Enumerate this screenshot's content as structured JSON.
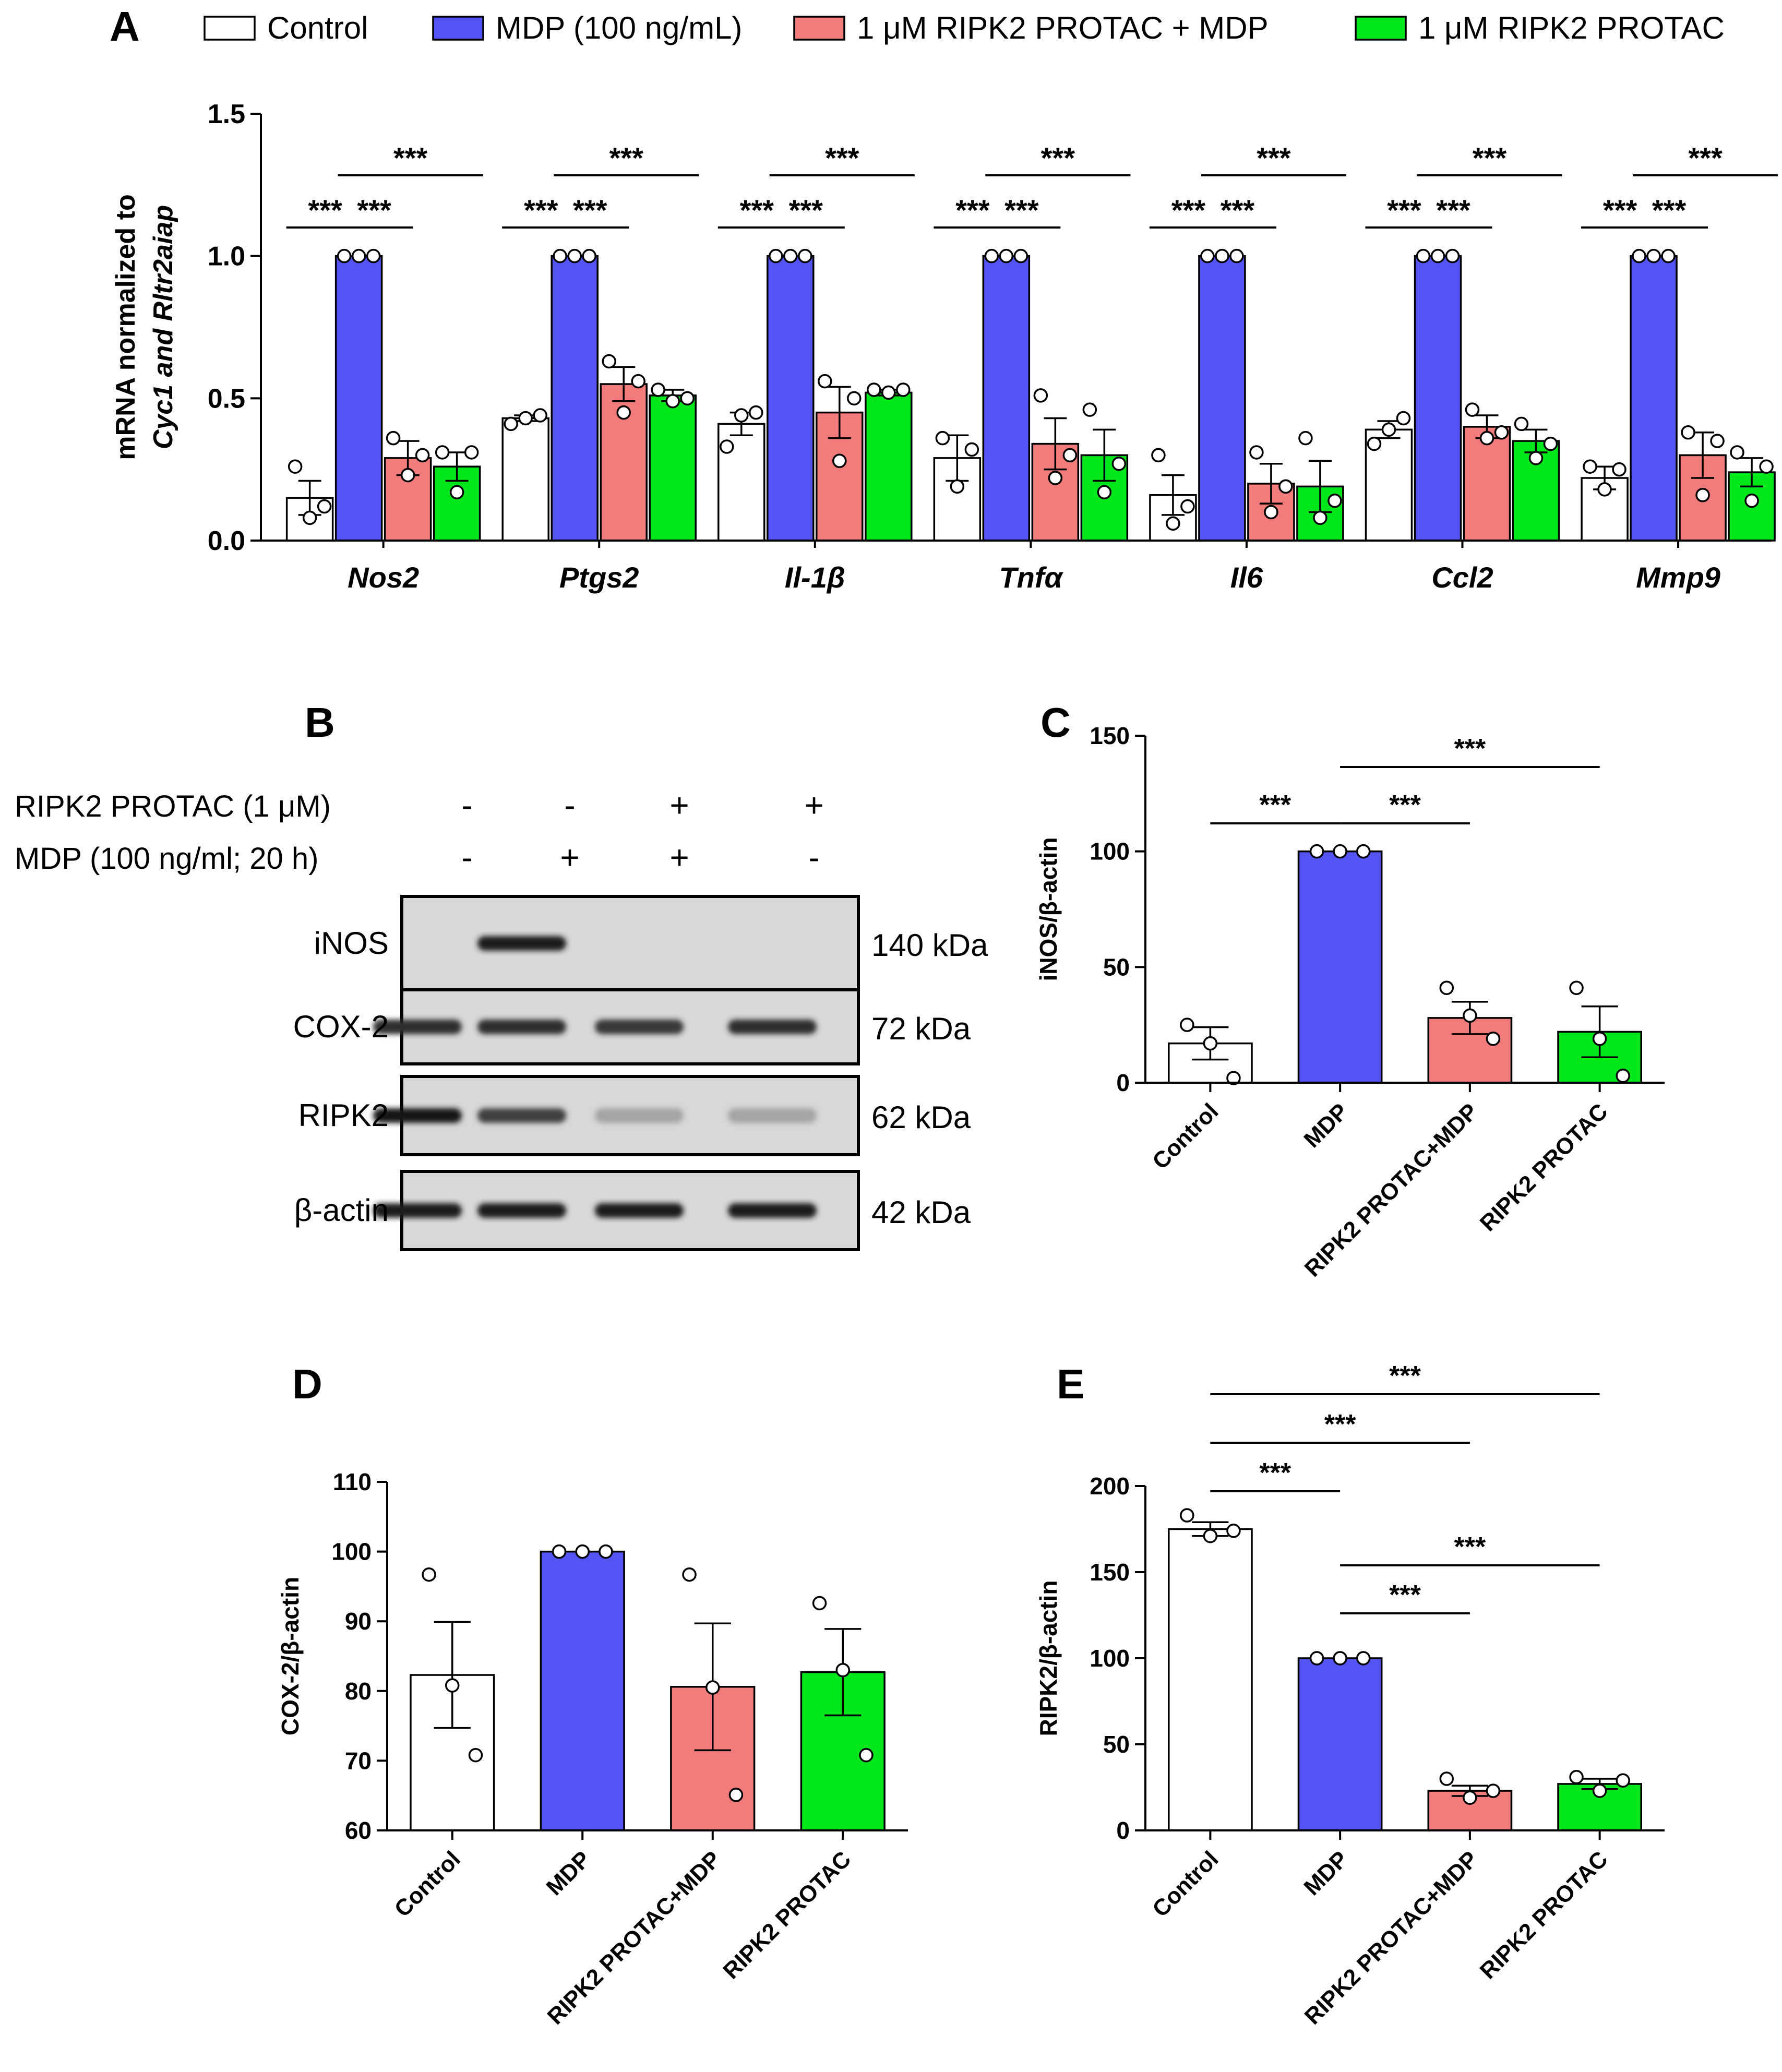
{
  "figure": {
    "colors": {
      "control": "#ffffff",
      "mdp": "#5454F5",
      "combo": "#F27C7C",
      "protac": "#00E81C"
    },
    "panels": {
      "A": {
        "letter": "A"
      },
      "B": {
        "letter": "B",
        "conditions": [
          {
            "label": "RIPK2 PROTAC (1 μM)",
            "lanes": [
              "-",
              "-",
              "+",
              "+"
            ]
          },
          {
            "label": "MDP (100 ng/ml; 20 h)",
            "lanes": [
              "-",
              "+",
              "+",
              "-"
            ]
          }
        ],
        "blots": [
          {
            "protein": "iNOS",
            "size": "140 kDa",
            "intensity": [
              0.0,
              0.95,
              0.0,
              0.0
            ]
          },
          {
            "protein": "COX-2",
            "size": "72 kDa",
            "intensity": [
              0.85,
              0.85,
              0.8,
              0.85
            ]
          },
          {
            "protein": "RIPK2",
            "size": "62 kDa",
            "intensity": [
              1.0,
              0.75,
              0.2,
              0.2
            ]
          },
          {
            "protein": "β-actin",
            "size": "42 kDa",
            "intensity": [
              0.95,
              0.95,
              0.95,
              0.95
            ]
          }
        ]
      },
      "C": {
        "letter": "C"
      },
      "D": {
        "letter": "D"
      },
      "E": {
        "letter": "E"
      }
    }
  },
  "chart_data": [
    {
      "panel": "A",
      "type": "bar",
      "ylabel": [
        "mRNA normalized to",
        "Cyc1 and Rltr2aiap"
      ],
      "ylim": [
        0,
        1.5
      ],
      "yticks": [
        "0.0",
        "0.5",
        "1.0",
        "1.5"
      ],
      "legend": [
        "Control",
        "MDP (100 ng/mL)",
        "1 μM RIPK2 PROTAC + MDP",
        "1 μM RIPK2 PROTAC"
      ],
      "categories": [
        "Nos2",
        "Ptgs2",
        "Il-1β",
        "Tnfα",
        "Il6",
        "Ccl2",
        "Mmp9"
      ],
      "series": [
        {
          "name": "Control",
          "values": [
            0.15,
            0.43,
            0.41,
            0.29,
            0.16,
            0.39,
            0.22
          ],
          "errors": [
            0.06,
            0.01,
            0.04,
            0.08,
            0.07,
            0.03,
            0.04
          ],
          "points": [
            [
              0.26,
              0.08,
              0.12
            ],
            [
              0.41,
              0.43,
              0.44
            ],
            [
              0.33,
              0.44,
              0.45
            ],
            [
              0.36,
              0.19,
              0.32
            ],
            [
              0.3,
              0.06,
              0.12
            ],
            [
              0.34,
              0.39,
              0.43
            ],
            [
              0.26,
              0.18,
              0.25
            ]
          ]
        },
        {
          "name": "MDP (100 ng/mL)",
          "values": [
            1.0,
            1.0,
            1.0,
            1.0,
            1.0,
            1.0,
            1.0
          ],
          "errors": [
            0,
            0,
            0,
            0,
            0,
            0,
            0
          ],
          "points": [
            [
              1,
              1,
              1
            ],
            [
              1,
              1,
              1
            ],
            [
              1,
              1,
              1
            ],
            [
              1,
              1,
              1
            ],
            [
              1,
              1,
              1
            ],
            [
              1,
              1,
              1
            ],
            [
              1,
              1,
              1
            ]
          ]
        },
        {
          "name": "1 μM RIPK2 PROTAC + MDP",
          "values": [
            0.29,
            0.55,
            0.45,
            0.34,
            0.2,
            0.4,
            0.3
          ],
          "errors": [
            0.06,
            0.06,
            0.09,
            0.09,
            0.07,
            0.04,
            0.08
          ],
          "points": [
            [
              0.36,
              0.23,
              0.3
            ],
            [
              0.63,
              0.45,
              0.56
            ],
            [
              0.56,
              0.28,
              0.5
            ],
            [
              0.51,
              0.22,
              0.3
            ],
            [
              0.31,
              0.1,
              0.19
            ],
            [
              0.46,
              0.36,
              0.38
            ],
            [
              0.38,
              0.16,
              0.35
            ]
          ]
        },
        {
          "name": "1 μM RIPK2 PROTAC",
          "values": [
            0.26,
            0.51,
            0.52,
            0.3,
            0.19,
            0.35,
            0.24
          ],
          "errors": [
            0.05,
            0.02,
            0.01,
            0.09,
            0.09,
            0.04,
            0.05
          ],
          "points": [
            [
              0.31,
              0.17,
              0.31
            ],
            [
              0.53,
              0.49,
              0.5
            ],
            [
              0.53,
              0.52,
              0.53
            ],
            [
              0.46,
              0.17,
              0.27
            ],
            [
              0.36,
              0.08,
              0.14
            ],
            [
              0.41,
              0.29,
              0.34
            ],
            [
              0.31,
              0.14,
              0.26
            ]
          ]
        }
      ],
      "significance": [
        {
          "from": "Control",
          "to": "MDP (100 ng/mL)",
          "label": "***"
        },
        {
          "from": "MDP (100 ng/mL)",
          "to": "1 μM RIPK2 PROTAC + MDP",
          "label": "***"
        },
        {
          "from": "MDP (100 ng/mL)",
          "to": "1 μM RIPK2 PROTAC",
          "label": "***"
        }
      ]
    },
    {
      "panel": "C",
      "type": "bar",
      "ylabel": "iNOS/β-actin",
      "ylim": [
        0,
        150
      ],
      "yticks": [
        "0",
        "50",
        "100",
        "150"
      ],
      "categories": [
        "Control",
        "MDP",
        "RIPK2 PROTAC+MDP",
        "RIPK2 PROTAC"
      ],
      "values": [
        17,
        100,
        28,
        22
      ],
      "errors": [
        7,
        0,
        7,
        11
      ],
      "points": [
        [
          25,
          17,
          2
        ],
        [
          100,
          100,
          100
        ],
        [
          41,
          29,
          19
        ],
        [
          41,
          19,
          3
        ]
      ],
      "significance": [
        {
          "from": 0,
          "to": 1,
          "label": "***",
          "level": 1
        },
        {
          "from": 1,
          "to": 2,
          "label": "***",
          "level": 1
        },
        {
          "from": 1,
          "to": 3,
          "label": "***",
          "level": 2
        }
      ]
    },
    {
      "panel": "D",
      "type": "bar",
      "ylabel": "COX-2/β-actin",
      "ylim": [
        60,
        110
      ],
      "yticks": [
        "60",
        "70",
        "80",
        "90",
        "100",
        "110"
      ],
      "categories": [
        "Control",
        "MDP",
        "RIPK2 PROTAC+MDP",
        "RIPK2 PROTAC"
      ],
      "values": [
        82.3,
        100,
        80.6,
        82.7
      ],
      "errors": [
        7.6,
        0,
        9.1,
        6.2
      ],
      "points": [
        [
          96.7,
          80.8,
          70.8
        ],
        [
          100,
          100,
          100
        ],
        [
          96.7,
          80.5,
          65.1
        ],
        [
          92.6,
          83.0,
          70.8
        ]
      ],
      "significance": []
    },
    {
      "panel": "E",
      "type": "bar",
      "ylabel": "RIPK2/β-actin",
      "ylim": [
        0,
        200
      ],
      "yticks": [
        "0",
        "50",
        "100",
        "150",
        "200"
      ],
      "categories": [
        "Control",
        "MDP",
        "RIPK2 PROTAC+MDP",
        "RIPK2 PROTAC"
      ],
      "values": [
        175,
        100,
        23,
        27
      ],
      "errors": [
        4,
        0,
        3,
        3
      ],
      "points": [
        [
          183,
          171,
          174
        ],
        [
          100,
          100,
          100
        ],
        [
          30,
          19,
          23
        ],
        [
          31,
          23,
          29
        ]
      ],
      "significance": [
        {
          "from": 0,
          "to": 1,
          "label": "***",
          "level": 1
        },
        {
          "from": 0,
          "to": 2,
          "label": "***",
          "level": 2
        },
        {
          "from": 0,
          "to": 3,
          "label": "***",
          "level": 3
        },
        {
          "from": 1,
          "to": 2,
          "label": "***",
          "level": 1
        },
        {
          "from": 1,
          "to": 3,
          "label": "***",
          "level": 2
        }
      ]
    }
  ]
}
